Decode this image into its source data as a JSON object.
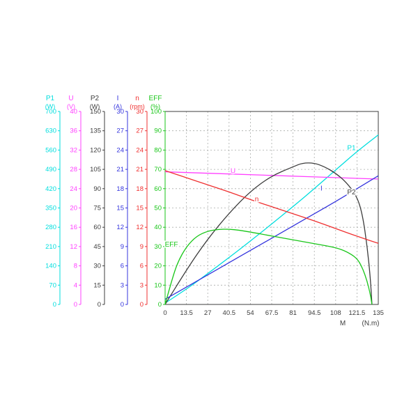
{
  "chart_data": {
    "type": "line",
    "grid": true,
    "x_axis": {
      "name": "M",
      "unit": "(N.m)",
      "min": 0,
      "max": 135,
      "tick_labels": [
        "0",
        "13.5",
        "27",
        "40.5",
        "54",
        "67.5",
        "81",
        "94.5",
        "108",
        "121.5",
        "135"
      ]
    },
    "y_axes": [
      {
        "name": "P1",
        "unit": "(W)",
        "color": "#00dede",
        "max": 700,
        "tick_labels": [
          "0",
          "70",
          "140",
          "210",
          "280",
          "350",
          "420",
          "490",
          "560",
          "630",
          "700"
        ]
      },
      {
        "name": "U",
        "unit": "(V)",
        "color": "#ff40ff",
        "max": 40,
        "tick_labels": [
          "0",
          "4",
          "8",
          "12",
          "16",
          "20",
          "24",
          "28",
          "32",
          "36",
          "40"
        ]
      },
      {
        "name": "P2",
        "unit": "(W)",
        "color": "#3c3c3c",
        "max": 150,
        "tick_labels": [
          "0",
          "15",
          "30",
          "45",
          "60",
          "75",
          "90",
          "105",
          "120",
          "135",
          "150"
        ]
      },
      {
        "name": "I",
        "unit": "(A)",
        "color": "#3434dd",
        "max": 30,
        "tick_labels": [
          "0",
          "3",
          "6",
          "9",
          "12",
          "15",
          "18",
          "21",
          "24",
          "27",
          "30"
        ]
      },
      {
        "name": "n",
        "unit": "(rpm)",
        "color": "#ef3030",
        "max": 30,
        "tick_labels": [
          "0",
          "3",
          "6",
          "9",
          "12",
          "15",
          "18",
          "21",
          "24",
          "27",
          "30"
        ]
      },
      {
        "name": "EFF",
        "unit": "(%)",
        "color": "#19c619",
        "max": 100,
        "tick_labels": [
          "0",
          "10",
          "20",
          "30",
          "40",
          "50",
          "60",
          "70",
          "80",
          "90",
          "100"
        ]
      }
    ],
    "series": [
      {
        "name": "P1",
        "axis": "P1",
        "points": [
          [
            0,
            5
          ],
          [
            13.5,
            55
          ],
          [
            27,
            112
          ],
          [
            40.5,
            170
          ],
          [
            54,
            230
          ],
          [
            67.5,
            292
          ],
          [
            81,
            355
          ],
          [
            94.5,
            420
          ],
          [
            108,
            488
          ],
          [
            121.5,
            555
          ],
          [
            135,
            615
          ]
        ]
      },
      {
        "name": "U",
        "axis": "U",
        "points": [
          [
            0,
            27.5
          ],
          [
            27,
            27.2
          ],
          [
            54,
            26.9
          ],
          [
            81,
            26.6
          ],
          [
            108,
            26.3
          ],
          [
            135,
            26
          ]
        ]
      },
      {
        "name": "P2",
        "axis": "P2",
        "points": [
          [
            0,
            0
          ],
          [
            13.5,
            27
          ],
          [
            27,
            51
          ],
          [
            40.5,
            71
          ],
          [
            54,
            88
          ],
          [
            67.5,
            100
          ],
          [
            81,
            107
          ],
          [
            87,
            110
          ],
          [
            94.5,
            110
          ],
          [
            101,
            107
          ],
          [
            108,
            102
          ],
          [
            114.8,
            95
          ],
          [
            121.5,
            84
          ],
          [
            125,
            70
          ],
          [
            128,
            45
          ],
          [
            130,
            20
          ],
          [
            131,
            0
          ]
        ]
      },
      {
        "name": "I",
        "axis": "I",
        "points": [
          [
            0,
            0.8
          ],
          [
            13.5,
            2.7
          ],
          [
            27,
            4.6
          ],
          [
            40.5,
            6.5
          ],
          [
            54,
            8.4
          ],
          [
            67.5,
            10.3
          ],
          [
            81,
            12.2
          ],
          [
            94.5,
            14.1
          ],
          [
            108,
            16
          ],
          [
            121.5,
            18
          ],
          [
            135,
            20
          ]
        ]
      },
      {
        "name": "n",
        "axis": "n",
        "points": [
          [
            0,
            20.8
          ],
          [
            13.5,
            19.7
          ],
          [
            27,
            18.6
          ],
          [
            40.5,
            17.5
          ],
          [
            54,
            16.3
          ],
          [
            67.5,
            15.2
          ],
          [
            81,
            14.1
          ],
          [
            94.5,
            13
          ],
          [
            108,
            11.8
          ],
          [
            121.5,
            10.6
          ],
          [
            135,
            9.5
          ]
        ]
      },
      {
        "name": "EFF",
        "axis": "EFF",
        "points": [
          [
            0,
            0
          ],
          [
            4,
            12
          ],
          [
            8,
            22
          ],
          [
            13.5,
            30
          ],
          [
            20,
            35.5
          ],
          [
            27,
            38
          ],
          [
            34,
            39
          ],
          [
            40.5,
            39
          ],
          [
            47,
            38.5
          ],
          [
            54,
            37.5
          ],
          [
            67.5,
            35.5
          ],
          [
            81,
            33.5
          ],
          [
            94.5,
            31.5
          ],
          [
            108,
            29.5
          ],
          [
            114.8,
            27.5
          ],
          [
            121.5,
            24
          ],
          [
            125,
            19
          ],
          [
            128,
            12
          ],
          [
            130,
            5
          ],
          [
            131,
            0
          ]
        ]
      }
    ],
    "annotations": [
      {
        "text": "U",
        "axis": "U",
        "m": 43,
        "f": 0.68
      },
      {
        "text": "n",
        "axis": "n",
        "m": 58,
        "f": 0.535
      },
      {
        "text": "I",
        "axis": "I",
        "m": 99,
        "f": 0.59
      },
      {
        "text": "P1",
        "axis": "P1",
        "m": 118,
        "f": 0.8
      },
      {
        "text": "P2",
        "axis": "P2",
        "m": 118,
        "f": 0.57
      },
      {
        "text": "EFF",
        "axis": "EFF",
        "m": 4,
        "f": 0.3
      }
    ]
  }
}
